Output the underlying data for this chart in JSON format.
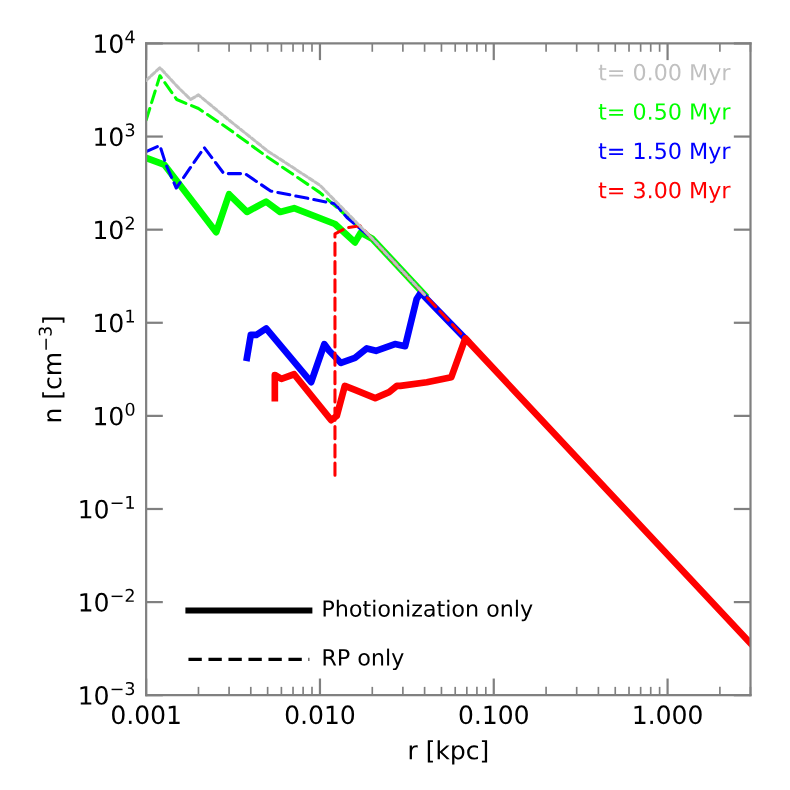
{
  "chart_data": {
    "type": "line",
    "xlabel": "r [kpc]",
    "ylabel": "n [cm$^{−3}$]",
    "log": "xy",
    "xlim": [
      0.001,
      3
    ],
    "ylim": [
      0.001,
      10000
    ],
    "xticks": [
      {
        "value": 0.001,
        "label": "0.001"
      },
      {
        "value": 0.01,
        "label": "0.010"
      },
      {
        "value": 0.1,
        "label": "0.100"
      },
      {
        "value": 1,
        "label": "1.000"
      }
    ],
    "yticks": [
      {
        "value": 0.001,
        "label": "10$^{−3}$"
      },
      {
        "value": 0.01,
        "label": "10$^{−2}$"
      },
      {
        "value": 0.1,
        "label": "10$^{−1}$"
      },
      {
        "value": 1,
        "label": "10$^{0}$"
      },
      {
        "value": 10,
        "label": "10$^{1}$"
      },
      {
        "value": 100,
        "label": "10$^{2}$"
      },
      {
        "value": 1000,
        "label": "10$^{3}$"
      },
      {
        "value": 10000,
        "label": "10$^{4}$"
      }
    ],
    "grid": false,
    "legend": "top right",
    "marker": "none",
    "series": [
      {
        "name": "t= 0.00 Myr",
        "color": "#c0c0c0",
        "line_style": "dotted",
        "x": [
          0.001,
          0.0012,
          0.0015,
          0.0018,
          0.002,
          0.003,
          0.005,
          0.01,
          0.02,
          0.04
        ],
        "values": [
          4000,
          5500,
          3500,
          2500,
          2800,
          1500,
          700,
          300,
          80,
          20
        ]
      },
      {
        "name": "t= 0.50 Myr",
        "color": "#00ff00",
        "line_style": "solid",
        "x": [
          0.001,
          0.00127,
          0.00253,
          0.003,
          0.0038,
          0.0049,
          0.0059,
          0.0071,
          0.0122,
          0.0159,
          0.0172,
          0.02,
          0.04
        ],
        "values": [
          590,
          500,
          94,
          240,
          155,
          200,
          155,
          170,
          115,
          73,
          93,
          80,
          20
        ]
      },
      {
        "color": "#00ff00",
        "line_style": "dashed",
        "x": [
          0.001,
          0.0012,
          0.0015,
          0.002,
          0.003,
          0.005,
          0.01,
          0.02,
          0.04
        ],
        "values": [
          1500,
          4500,
          2500,
          2000,
          1200,
          600,
          250,
          80,
          20
        ]
      },
      {
        "name": "t= 1.50 Myr",
        "color": "#0000ff",
        "line_style": "solid",
        "x": [
          0.0038,
          0.004,
          0.0043,
          0.0049,
          0.0089,
          0.0106,
          0.0113,
          0.0132,
          0.0159,
          0.0186,
          0.021,
          0.027,
          0.0309,
          0.036,
          0.038,
          0.07
        ],
        "values": [
          4.2,
          7.4,
          7.4,
          8.7,
          2.3,
          5.9,
          5,
          3.7,
          4.2,
          5.3,
          5,
          5.9,
          5.6,
          18,
          21,
          6.5
        ]
      },
      {
        "color": "#0000ff",
        "line_style": "dashed",
        "x": [
          0.001,
          0.0012,
          0.0013,
          0.00149,
          0.00216,
          0.0028,
          0.0037,
          0.0052,
          0.0122,
          0.0143,
          0.02,
          0.07
        ],
        "values": [
          690,
          800,
          500,
          280,
          760,
          400,
          400,
          260,
          190,
          135,
          80,
          6.5
        ]
      },
      {
        "name": "t= 3.00 Myr",
        "color": "#ff0000",
        "line_style": "solid",
        "x": [
          0.0055,
          0.0055,
          0.006,
          0.0071,
          0.0116,
          0.0125,
          0.0139,
          0.0159,
          0.0208,
          0.025,
          0.0277,
          0.029,
          0.0412,
          0.057,
          0.0686,
          3
        ],
        "values": [
          1.55,
          2.75,
          2.5,
          2.8,
          0.9,
          1,
          2.1,
          1.9,
          1.55,
          1.8,
          2.1,
          2.1,
          2.3,
          2.6,
          6.8,
          0.0036
        ]
      },
      {
        "color": "#ff0000",
        "line_style": "dashed",
        "x": [
          0.0122,
          0.0122,
          0.0143,
          0.017,
          3
        ],
        "values": [
          0.23,
          90,
          105,
          110,
          0.0036
        ]
      }
    ],
    "annotations": [
      "Photionization only",
      "RP only"
    ]
  }
}
